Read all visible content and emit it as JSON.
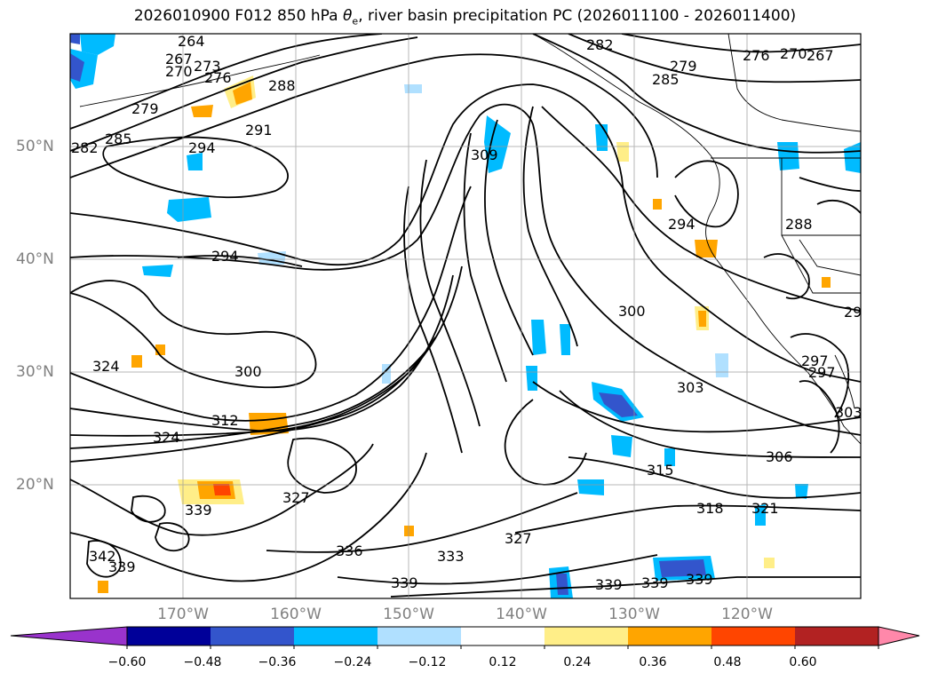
{
  "title": {
    "prefix": "2026010900 F012 850 hPa ",
    "symbol": "θ",
    "subscript": "e",
    "suffix": ", river basin precipitation PC (2026011100 - 2026011400)"
  },
  "lat_ticks": [
    "50°N",
    "40°N",
    "30°N",
    "20°N"
  ],
  "lon_ticks": [
    "170°W",
    "160°W",
    "150°W",
    "140°W",
    "130°W",
    "120°W"
  ],
  "colorbar": {
    "colors": [
      "#9933cc",
      "#000099",
      "#3355cc",
      "#00bbff",
      "#b0e0ff",
      "#ffffff",
      "#ffee88",
      "#ffa500",
      "#ff4500",
      "#b22222",
      "#ff88aa"
    ],
    "under_color": "#9933cc",
    "over_color": "#ff88aa",
    "tick_labels": [
      "−0.60",
      "−0.48",
      "−0.36",
      "−0.24",
      "−0.12",
      "0.12",
      "0.24",
      "0.36",
      "0.48",
      "0.60"
    ]
  },
  "contour_labels": [
    "264",
    "267",
    "270",
    "273",
    "276",
    "279",
    "282",
    "285",
    "288",
    "291",
    "294",
    "294",
    "294",
    "297",
    "300",
    "300",
    "303",
    "306",
    "309",
    "312",
    "315",
    "318",
    "321",
    "324",
    "324",
    "327",
    "327",
    "333",
    "336",
    "339",
    "339",
    "339",
    "339",
    "339",
    "339",
    "342",
    "276",
    "279",
    "282",
    "285",
    "270",
    "267",
    "288",
    "29",
    "303",
    "297"
  ]
}
